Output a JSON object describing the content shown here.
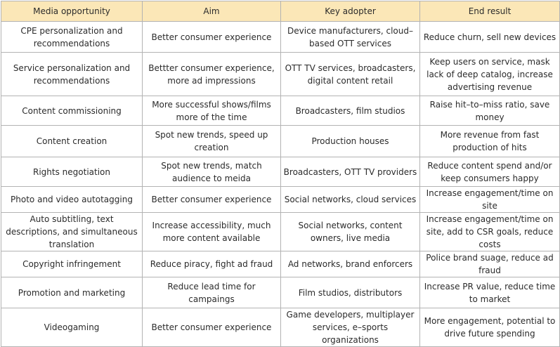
{
  "headers": [
    "Media opportunity",
    "Aim",
    "Key adopter",
    "End result"
  ],
  "rows": [
    [
      "CPE personalization and recommendations",
      "Better consumer experience",
      "Device manufacturers, cloud–based OTT services",
      "Reduce churn, sell new devices"
    ],
    [
      "Service personalization and recommendations",
      "Bettter consumer experience, more ad impressions",
      "OTT TV services, broadcasters, digital content retail",
      "Keep users on service, mask lack of deep catalog, increase advertising revenue"
    ],
    [
      "Content commissioning",
      "More successful shows/films more of the time",
      "Broadcasters, film studios",
      "Raise hit–to–miss ratio, save money"
    ],
    [
      "Content creation",
      "Spot new trends, speed up creation",
      "Production houses",
      "More revenue from fast production of hits"
    ],
    [
      "Rights negotiation",
      "Spot new trends, match audience to meida",
      "Broadcasters, OTT TV providers",
      "Reduce content spend and/or keep consumers happy"
    ],
    [
      "Photo and video autotagging",
      "Better consumer experience",
      "Social networks, cloud services",
      "Increase engagement/time on site"
    ],
    [
      "Auto subtitling, text descriptions, and simultaneous translation",
      "Increase accessibility, much more content available",
      "Social networks, content owners, live media",
      "Increase engagement/time on site, add to CSR goals, reduce costs"
    ],
    [
      "Copyright infringement",
      "Reduce piracy, fight ad fraud",
      "Ad networks, brand enforcers",
      "Police brand suage, reduce ad fraud"
    ],
    [
      "Promotion and marketing",
      "Reduce lead time for campaings",
      "Film studios, distributors",
      "Increase PR value, reduce time to market"
    ],
    [
      "Videogaming",
      "Better consumer experience",
      "Game developers, multiplayer services, e–sports organizations",
      "More engagement, potential to drive future spending"
    ]
  ]
}
